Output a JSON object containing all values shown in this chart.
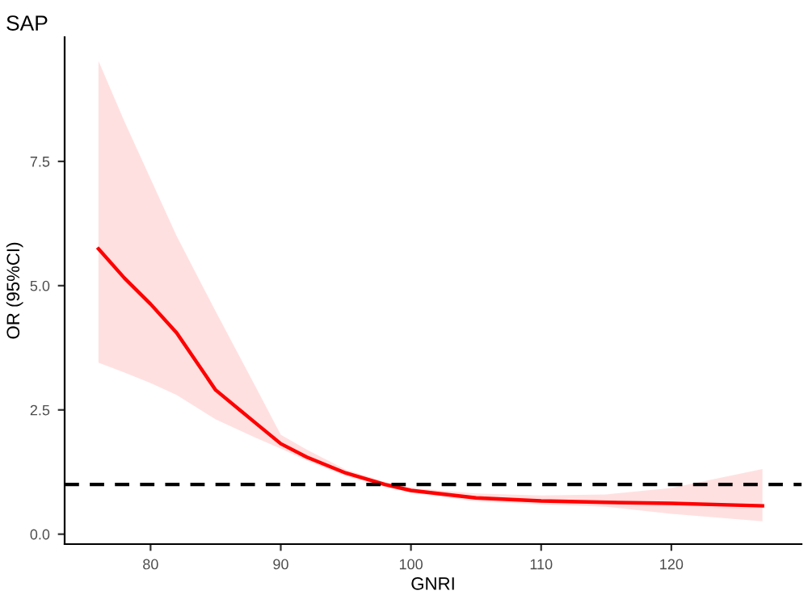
{
  "chart_data": {
    "type": "line",
    "title": "SAP",
    "xlabel": "GNRI",
    "ylabel": "OR (95%CI)",
    "series": [
      {
        "color": "#ff0000",
        "x": [
          76,
          78,
          80,
          82,
          85,
          88,
          90,
          92,
          95,
          98,
          100,
          105,
          110,
          115,
          120,
          127
        ],
        "values": [
          5.74,
          5.15,
          4.63,
          4.05,
          2.9,
          2.25,
          1.82,
          1.55,
          1.23,
          1.0,
          0.88,
          0.73,
          0.67,
          0.64,
          0.62,
          0.57
        ],
        "lower": [
          3.45,
          3.25,
          3.04,
          2.8,
          2.31,
          1.95,
          1.72,
          1.48,
          1.17,
          0.95,
          0.83,
          0.66,
          0.6,
          0.55,
          0.41,
          0.26
        ],
        "upper": [
          9.52,
          8.3,
          7.15,
          6.0,
          4.48,
          3.0,
          2.0,
          1.7,
          1.3,
          1.05,
          0.93,
          0.82,
          0.78,
          0.8,
          0.93,
          1.31
        ]
      }
    ],
    "ref_lines": [
      {
        "axis": "y",
        "value": 1,
        "line_style": "dashed",
        "color": "#000000"
      }
    ],
    "xlim": [
      73.4,
      130
    ],
    "ylim": [
      -0.2,
      10
    ],
    "xticks": [
      80,
      90,
      100,
      110,
      120
    ],
    "yticks": [
      {
        "value": 0,
        "label": "0.0"
      },
      {
        "value": 2.5,
        "label": "2.5"
      },
      {
        "value": 5,
        "label": "5.0"
      },
      {
        "value": 7.5,
        "label": "7.5"
      }
    ],
    "grid": false,
    "legend": false,
    "marker": "none",
    "line_style": "solid"
  }
}
